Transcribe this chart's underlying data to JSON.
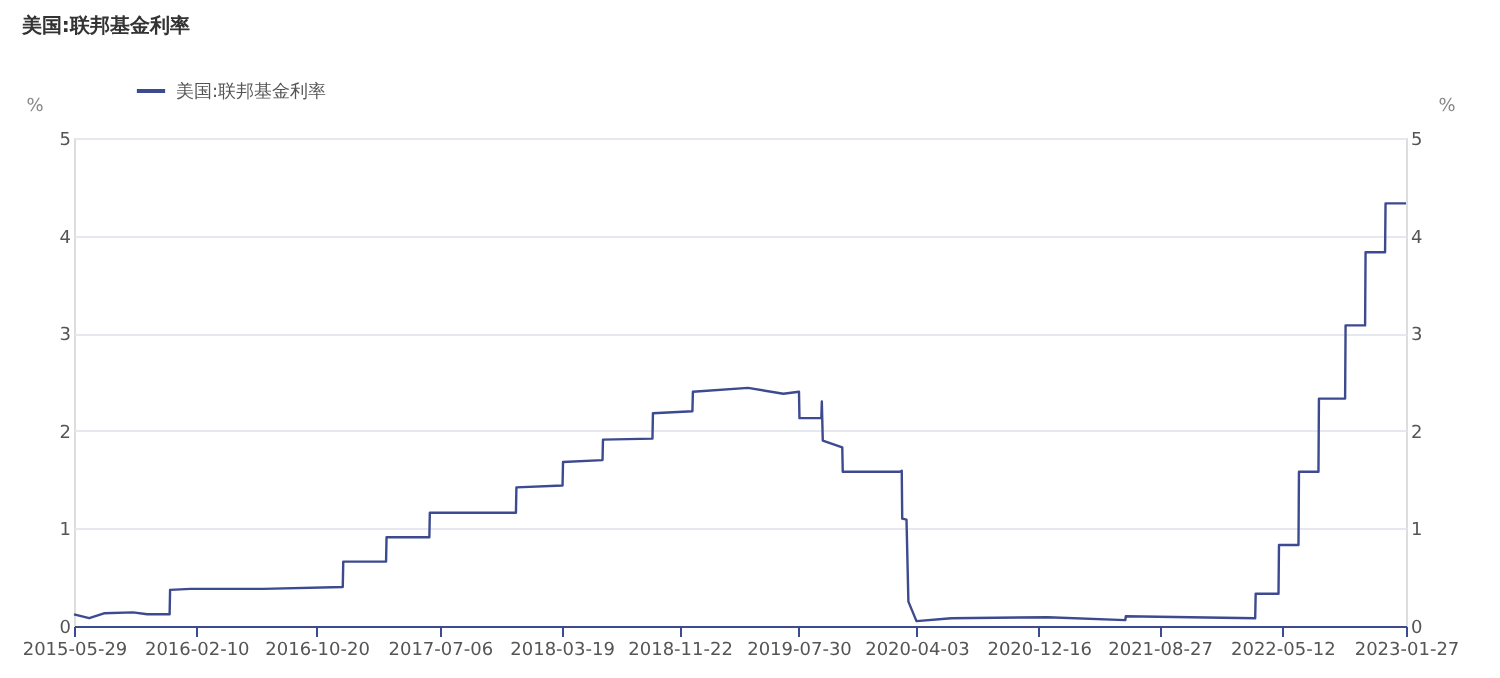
{
  "chart_data": {
    "type": "line",
    "title": "美国:联邦基金利率",
    "ylabel": "%",
    "y2label": "%",
    "legend": "top left",
    "grid": "y",
    "marker": "none",
    "line_style": "solid",
    "xlim": [
      "2015-05-29",
      "2023-01-27"
    ],
    "xticks": [
      "2015-05-29",
      "2016-02-10",
      "2016-10-20",
      "2017-07-06",
      "2018-03-19",
      "2018-11-22",
      "2019-07-30",
      "2020-04-03",
      "2020-12-16",
      "2021-08-27",
      "2022-05-12",
      "2023-01-27"
    ],
    "ylim": [
      0,
      5
    ],
    "yticks": [
      0,
      1,
      2,
      3,
      4,
      5
    ],
    "y2lim": [
      0,
      5
    ],
    "y2ticks": [
      0,
      1,
      2,
      3,
      4,
      5
    ],
    "series": [
      {
        "name": "美国:联邦基金利率",
        "color": "#3c4a8f",
        "x": [
          "2015-05-29",
          "2015-06-30",
          "2015-07-31",
          "2015-09-30",
          "2015-10-30",
          "2015-12-16",
          "2015-12-17",
          "2016-01-29",
          "2016-06-30",
          "2016-12-14",
          "2016-12-15",
          "2017-03-15",
          "2017-03-16",
          "2017-06-14",
          "2017-06-15",
          "2017-12-13",
          "2017-12-14",
          "2018-03-21",
          "2018-03-22",
          "2018-06-13",
          "2018-06-14",
          "2018-09-26",
          "2018-09-27",
          "2018-12-19",
          "2018-12-20",
          "2019-04-15",
          "2019-06-28",
          "2019-07-31",
          "2019-08-01",
          "2019-09-16",
          "2019-09-17",
          "2019-09-19",
          "2019-10-30",
          "2019-10-31",
          "2020-02-28",
          "2020-03-03",
          "2020-03-04",
          "2020-03-13",
          "2020-03-17",
          "2020-04-03",
          "2020-06-15",
          "2021-01-04",
          "2021-06-16",
          "2021-06-17",
          "2022-03-16",
          "2022-03-17",
          "2022-05-04",
          "2022-05-05",
          "2022-06-15",
          "2022-06-16",
          "2022-07-27",
          "2022-07-28",
          "2022-09-21",
          "2022-09-22",
          "2022-11-02",
          "2022-11-03",
          "2022-12-14",
          "2022-12-15",
          "2023-01-27"
        ],
        "values": [
          0.12,
          0.08,
          0.13,
          0.14,
          0.12,
          0.12,
          0.37,
          0.38,
          0.38,
          0.4,
          0.66,
          0.66,
          0.91,
          0.91,
          1.16,
          1.16,
          1.42,
          1.44,
          1.68,
          1.7,
          1.91,
          1.92,
          2.18,
          2.2,
          2.4,
          2.44,
          2.38,
          2.4,
          2.13,
          2.13,
          2.3,
          1.9,
          1.83,
          1.58,
          1.58,
          1.59,
          1.1,
          1.09,
          0.25,
          0.05,
          0.08,
          0.09,
          0.06,
          0.1,
          0.08,
          0.33,
          0.33,
          0.83,
          0.83,
          1.58,
          1.58,
          2.33,
          2.33,
          3.08,
          3.08,
          3.83,
          3.83,
          4.33,
          4.33
        ]
      }
    ]
  }
}
